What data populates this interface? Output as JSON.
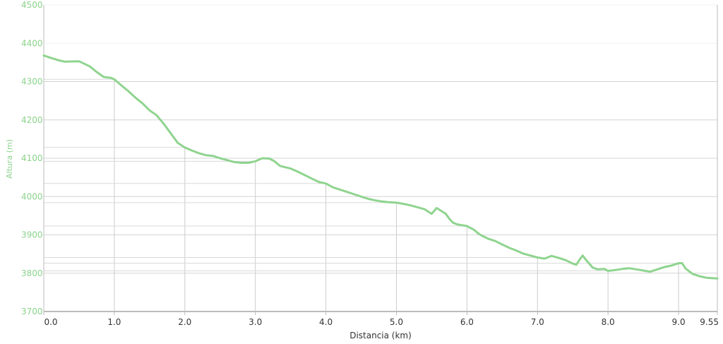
{
  "chart_data": {
    "type": "area",
    "xlabel": "Distancia (km)",
    "ylabel": "Altura (m)",
    "xlim": [
      0,
      9.55
    ],
    "ylim": [
      3700,
      4500
    ],
    "x_ticks": [
      "0.0",
      "1.0",
      "2.0",
      "3.0",
      "4.0",
      "5.0",
      "6.0",
      "7.0",
      "8.0",
      "9.0",
      "9.55"
    ],
    "x_tick_values": [
      0,
      1,
      2,
      3,
      4,
      5,
      6,
      7,
      8,
      9,
      9.55
    ],
    "y_ticks": [
      "3700",
      "3800",
      "3900",
      "4000",
      "4100",
      "4200",
      "4300",
      "4400",
      "4500"
    ],
    "y_tick_values": [
      3700,
      3800,
      3900,
      4000,
      4100,
      4200,
      4300,
      4400,
      4500
    ],
    "grid": true,
    "colors": {
      "line": "#8fd48f",
      "tick_y": "#8cd28c",
      "tick_x": "#333333",
      "grid": "#f0f0f0",
      "drop": "#cccccc",
      "axis": "#bbbbbb"
    },
    "series": [
      {
        "x": [
          0,
          0.1,
          0.2,
          0.3,
          0.5,
          0.65,
          0.75,
          0.85,
          0.95,
          1.0,
          1.1,
          1.2,
          1.3,
          1.4,
          1.5,
          1.6,
          1.7,
          1.8,
          1.9,
          2.0,
          2.1,
          2.2,
          2.3,
          2.4,
          2.5,
          2.6,
          2.7,
          2.8,
          2.9,
          3.0,
          3.1,
          3.2,
          3.27,
          3.35,
          3.5,
          3.6,
          3.7,
          3.8,
          3.9,
          4.0,
          4.1,
          4.2,
          4.3,
          4.4,
          4.5,
          4.6,
          4.7,
          4.8,
          4.9,
          5.0,
          5.1,
          5.2,
          5.3,
          5.4,
          5.5,
          5.57,
          5.64,
          5.7,
          5.75,
          5.8,
          5.85,
          5.9,
          6.0,
          6.1,
          6.15,
          6.2,
          6.3,
          6.4,
          6.5,
          6.6,
          6.7,
          6.8,
          6.9,
          7.0,
          7.1,
          7.2,
          7.3,
          7.4,
          7.5,
          7.55,
          7.6,
          7.64,
          7.7,
          7.78,
          7.85,
          7.95,
          8.0,
          8.1,
          8.2,
          8.3,
          8.4,
          8.5,
          8.6,
          8.7,
          8.8,
          8.9,
          9.0,
          9.05,
          9.1,
          9.2,
          9.3,
          9.4,
          9.55
        ],
        "y": [
          4368,
          4362,
          4356,
          4352,
          4353,
          4340,
          4325,
          4312,
          4310,
          4306,
          4290,
          4275,
          4258,
          4243,
          4225,
          4212,
          4190,
          4165,
          4140,
          4128,
          4120,
          4113,
          4108,
          4106,
          4100,
          4095,
          4090,
          4088,
          4088,
          4092,
          4100,
          4099,
          4092,
          4080,
          4073,
          4065,
          4056,
          4047,
          4038,
          4034,
          4024,
          4018,
          4012,
          4006,
          4000,
          3994,
          3990,
          3987,
          3985,
          3984,
          3981,
          3977,
          3972,
          3967,
          3955,
          3970,
          3962,
          3955,
          3942,
          3932,
          3928,
          3926,
          3923,
          3913,
          3905,
          3899,
          3890,
          3884,
          3875,
          3866,
          3859,
          3851,
          3846,
          3841,
          3838,
          3845,
          3840,
          3834,
          3825,
          3822,
          3836,
          3846,
          3832,
          3815,
          3810,
          3811,
          3806,
          3808,
          3811,
          3813,
          3810,
          3807,
          3804,
          3810,
          3816,
          3820,
          3826,
          3826,
          3812,
          3798,
          3792,
          3788,
          3786
        ]
      }
    ]
  }
}
